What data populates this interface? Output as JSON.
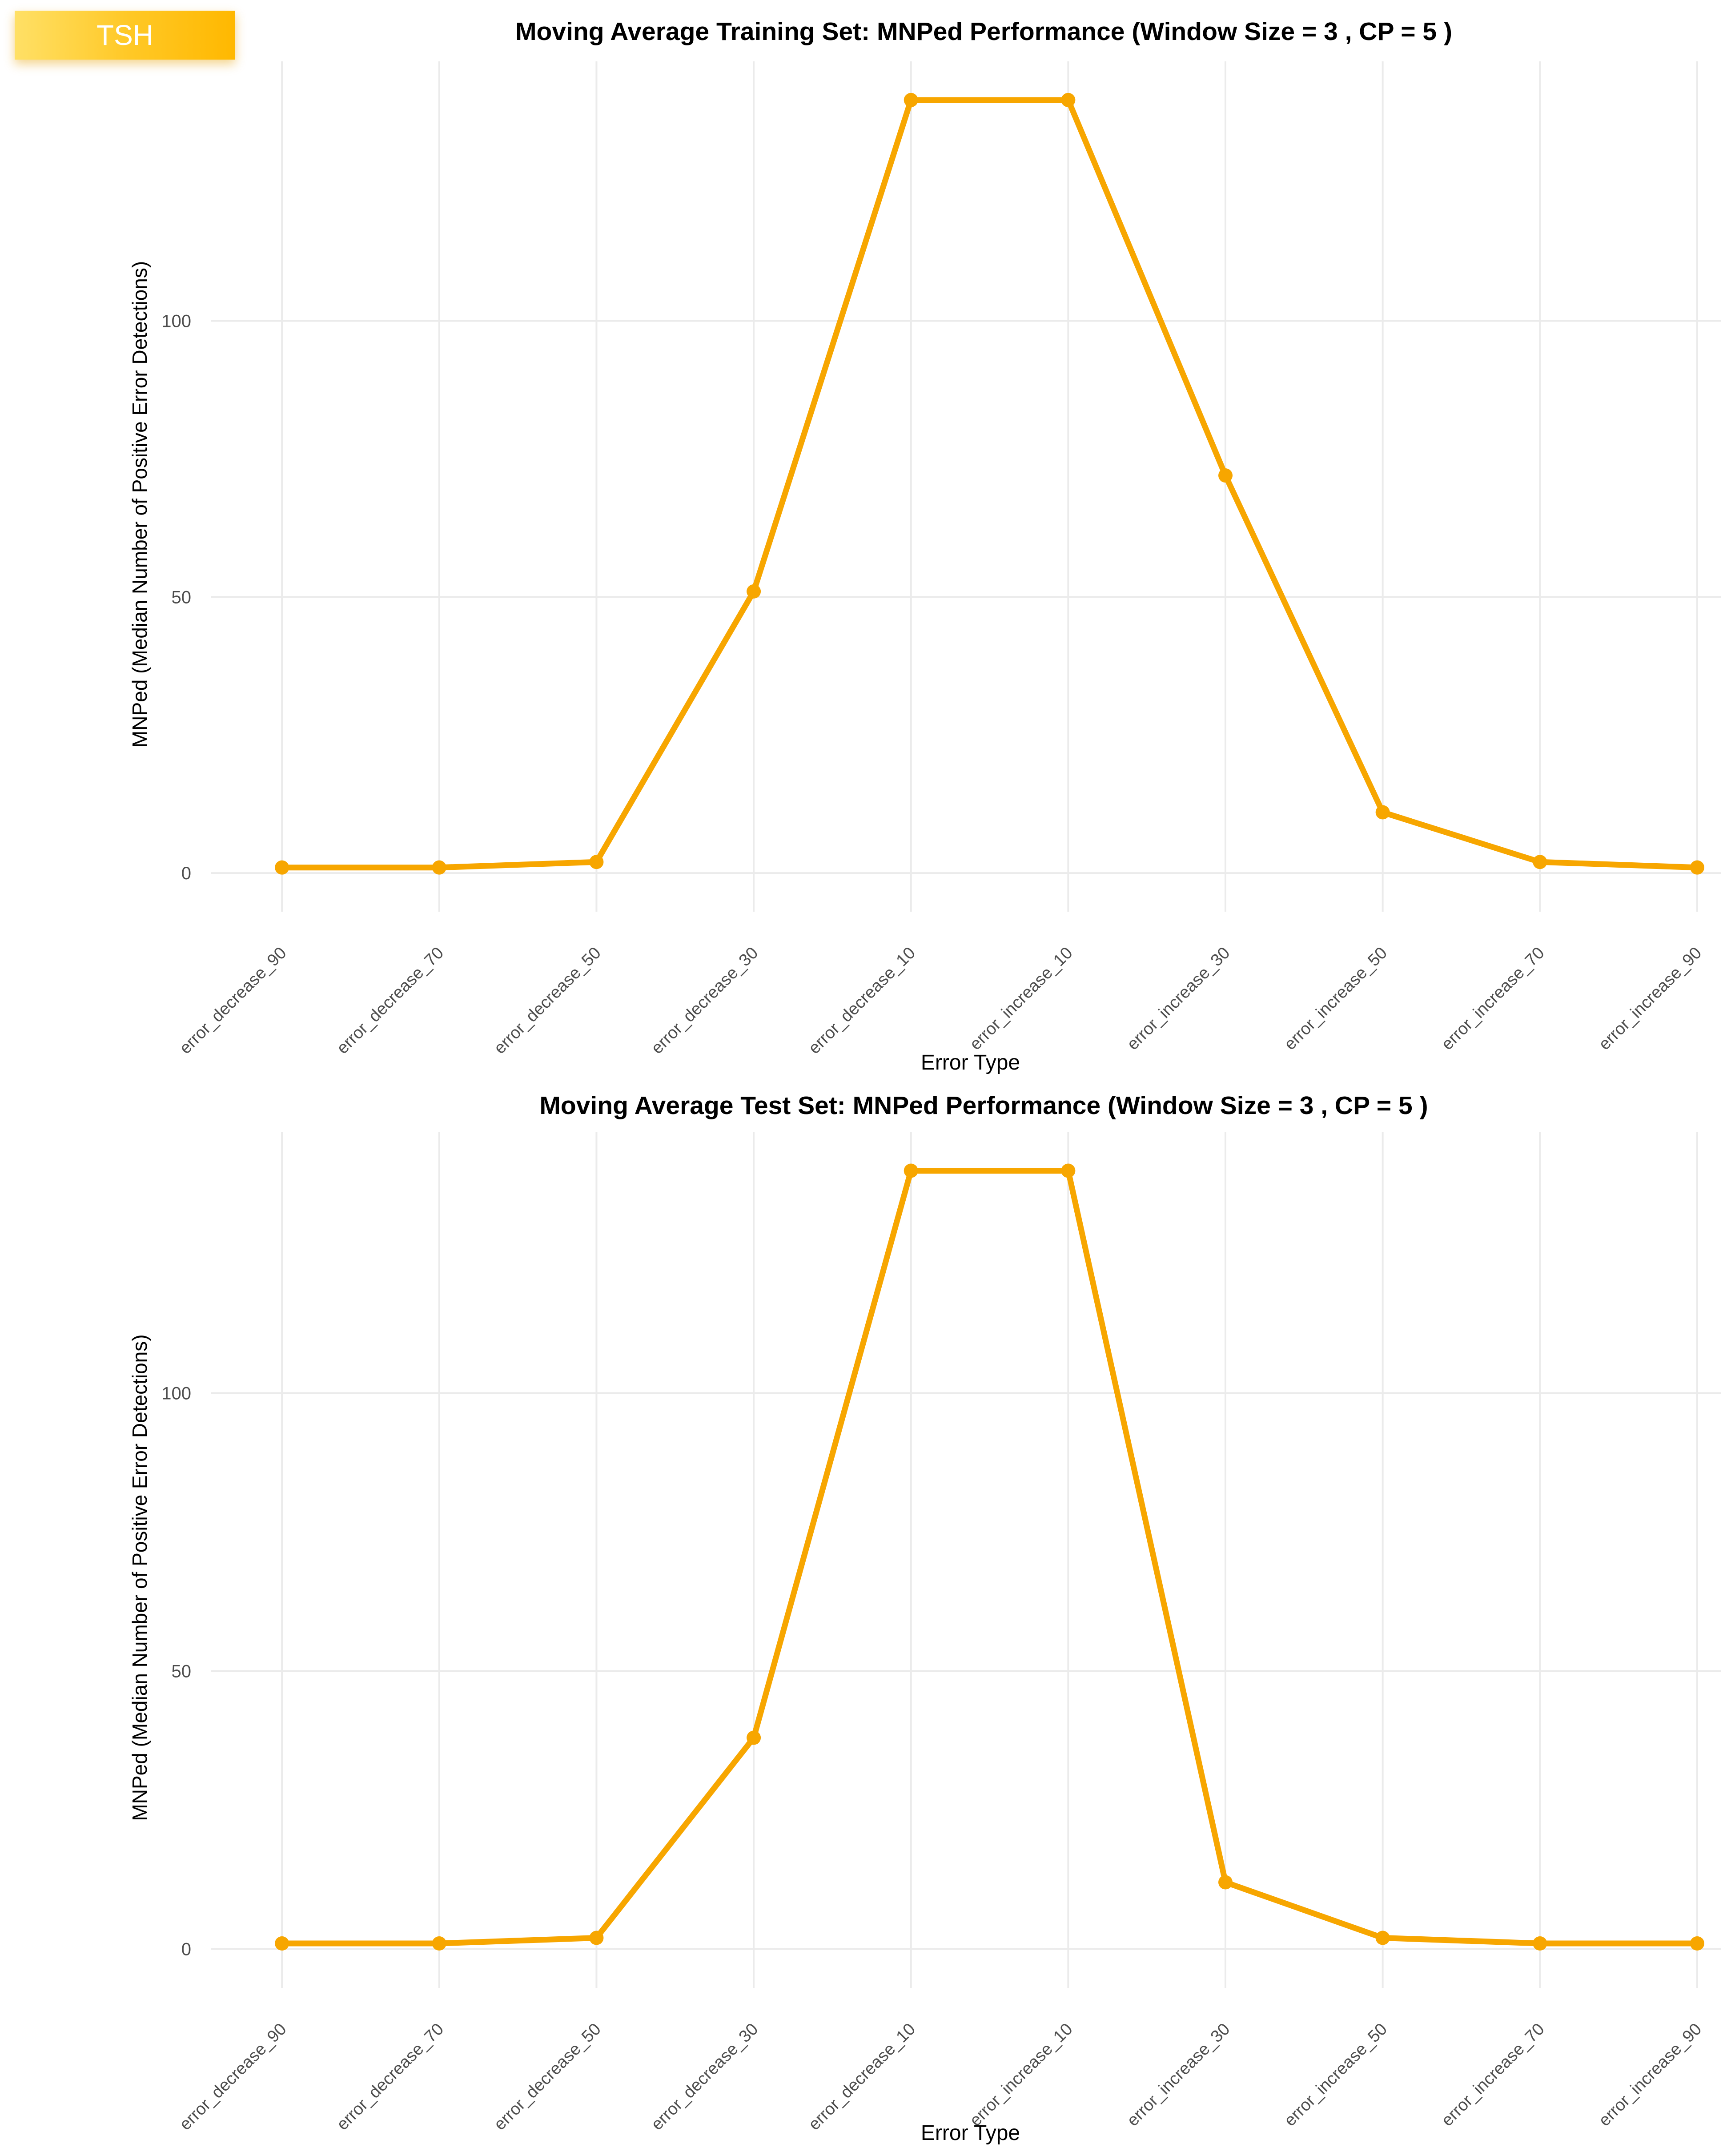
{
  "badge": {
    "label": "TSH"
  },
  "colors": {
    "line": "#f7a600",
    "grid": "#ebebeb",
    "text": "#000000",
    "tick_text": "#4d4d4d",
    "badge_start": "#ffe066",
    "badge_end": "#ffb800"
  },
  "chart_data": [
    {
      "type": "line",
      "title": "Moving Average Training Set: MNPed Performance (Window Size = 3 , CP = 5 )",
      "xlabel": "Error Type",
      "ylabel": "MNPed (Median Number of Positive Error Detections)",
      "categories": [
        "error_decrease_90",
        "error_decrease_70",
        "error_decrease_50",
        "error_decrease_30",
        "error_decrease_10",
        "error_increase_10",
        "error_increase_30",
        "error_increase_50",
        "error_increase_70",
        "error_increase_90"
      ],
      "series": [
        {
          "values": [
            1,
            1,
            2,
            51,
            140,
            140,
            72,
            11,
            2,
            1
          ]
        }
      ],
      "yticks": [
        0,
        50,
        100
      ],
      "ylim": [
        -7,
        147
      ],
      "grid": true,
      "legend": "none"
    },
    {
      "type": "line",
      "title": "Moving Average Test Set: MNPed Performance (Window Size = 3 , CP = 5 )",
      "xlabel": "Error Type",
      "ylabel": "MNPed (Median Number of Positive Error Detections)",
      "categories": [
        "error_decrease_90",
        "error_decrease_70",
        "error_decrease_50",
        "error_decrease_30",
        "error_decrease_10",
        "error_increase_10",
        "error_increase_30",
        "error_increase_50",
        "error_increase_70",
        "error_increase_90"
      ],
      "series": [
        {
          "values": [
            1,
            1,
            2,
            38,
            140,
            140,
            12,
            2,
            1,
            1
          ]
        }
      ],
      "yticks": [
        0,
        50,
        100
      ],
      "ylim": [
        -7,
        147
      ],
      "grid": true,
      "legend": "none"
    }
  ]
}
